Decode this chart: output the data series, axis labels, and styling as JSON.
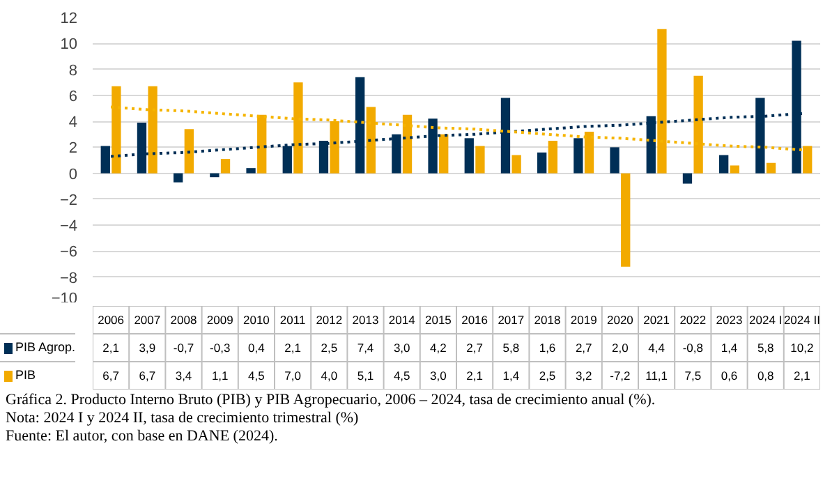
{
  "chart_data": {
    "type": "bar",
    "title": "Gráfica 2. Producto Interno Bruto (PIB) y PIB Agropecuario, 2006 – 2024, tasa de crecimiento anual (%).",
    "annotations": [
      "Nota: 2024 I y 2024 II, tasa de crecimiento trimestral (%)",
      "Fuente: El autor, con base en DANE (2024)."
    ],
    "categories": [
      "2006",
      "2007",
      "2008",
      "2009",
      "2010",
      "2011",
      "2012",
      "2013",
      "2014",
      "2015",
      "2016",
      "2017",
      "2018",
      "2019",
      "2020",
      "2021",
      "2022",
      "2023",
      "2024 I",
      "2024 II"
    ],
    "series": [
      {
        "name": "PIB Agrop.",
        "color": "#002f56",
        "values": [
          2.1,
          3.9,
          -0.7,
          -0.3,
          0.4,
          2.1,
          2.5,
          7.4,
          3.0,
          4.2,
          2.7,
          5.8,
          1.6,
          2.7,
          2.0,
          4.4,
          -0.8,
          1.4,
          5.8,
          10.2
        ],
        "value_labels": [
          "2,1",
          "3,9",
          "-0,7",
          "-0,3",
          "0,4",
          "2,1",
          "2,5",
          "7,4",
          "3,0",
          "4,2",
          "2,7",
          "5,8",
          "1,6",
          "2,7",
          "2,0",
          "4,4",
          "-0,8",
          "1,4",
          "5,8",
          "10,2"
        ]
      },
      {
        "name": "PIB",
        "color": "#f2aa00",
        "values": [
          6.7,
          6.7,
          3.4,
          1.1,
          4.5,
          7.0,
          4.0,
          5.1,
          4.5,
          3.0,
          2.1,
          1.4,
          2.5,
          3.2,
          -7.2,
          11.1,
          7.5,
          0.6,
          0.8,
          2.1
        ],
        "value_labels": [
          "6,7",
          "6,7",
          "3,4",
          "1,1",
          "4,5",
          "7,0",
          "4,0",
          "5,1",
          "4,5",
          "3,0",
          "2,1",
          "1,4",
          "2,5",
          "3,2",
          "-7,2",
          "11,1",
          "7,5",
          "0,6",
          "0,8",
          "2,1"
        ]
      },
      {
        "type": "line",
        "line_style": "dotted",
        "color": "#002f56",
        "values": [
          1.3,
          1.5,
          1.6,
          1.8,
          2.0,
          2.2,
          2.3,
          2.5,
          2.7,
          2.9,
          3.0,
          3.2,
          3.4,
          3.6,
          3.7,
          3.9,
          4.1,
          4.3,
          4.4,
          4.6
        ]
      },
      {
        "type": "line",
        "line_style": "dotted",
        "color": "#f5b400",
        "values": [
          5.1,
          4.9,
          4.8,
          4.6,
          4.4,
          4.2,
          4.1,
          3.9,
          3.7,
          3.5,
          3.4,
          3.2,
          3.0,
          2.8,
          2.7,
          2.5,
          2.3,
          2.1,
          2.0,
          1.8
        ]
      }
    ],
    "ylim": [
      -10,
      12
    ],
    "yticks": [
      -10,
      -8,
      -6,
      -4,
      -2,
      0,
      2,
      4,
      6,
      8,
      10,
      12
    ],
    "grid": "y",
    "legend": "bottom"
  }
}
